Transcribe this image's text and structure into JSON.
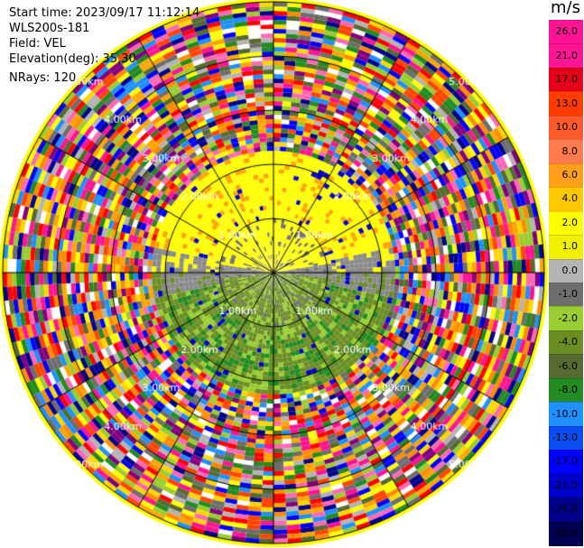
{
  "header": {
    "start_time": "Start time: 2023/09/17 11:12:14",
    "station": "WLS200s-181",
    "field": "Field: VEL",
    "elevation": "Elevation(deg): 35.30",
    "nrays": "NRays: 120"
  },
  "range_rings": {
    "labels": [
      "1.00km",
      "2.00km",
      "3.00km",
      "4.00km",
      "5.00km"
    ],
    "color": "#000000",
    "label_color": "#ffffff"
  },
  "colorbar": {
    "unit": "m/s",
    "colors": [
      "#ff1493",
      "#ff1493",
      "#e6001a",
      "#ff3c00",
      "#ff5a2a",
      "#ff7b4d",
      "#ff9f1a",
      "#ffc800",
      "#ffff00",
      "#f0f000",
      "#b4b4b4",
      "#6e6e6e",
      "#9acd32",
      "#6b8e23",
      "#556b2f",
      "#228b22",
      "#1e90ff",
      "#0a4df0",
      "#0000ff",
      "#0000cd",
      "#00008b",
      "#000050"
    ],
    "ticks": [
      "26.0",
      "21.0",
      "17.0",
      "13.0",
      "10.0",
      "8.0",
      "6.0",
      "4.0",
      "2.0",
      "1.0",
      "0.0",
      "-1.0",
      "-2.0",
      "-4.0",
      "-6.0",
      "-8.0",
      "-10.0",
      "-13.0",
      "-17.0",
      "-21.0",
      "-26.0",
      "-30.0"
    ]
  }
}
